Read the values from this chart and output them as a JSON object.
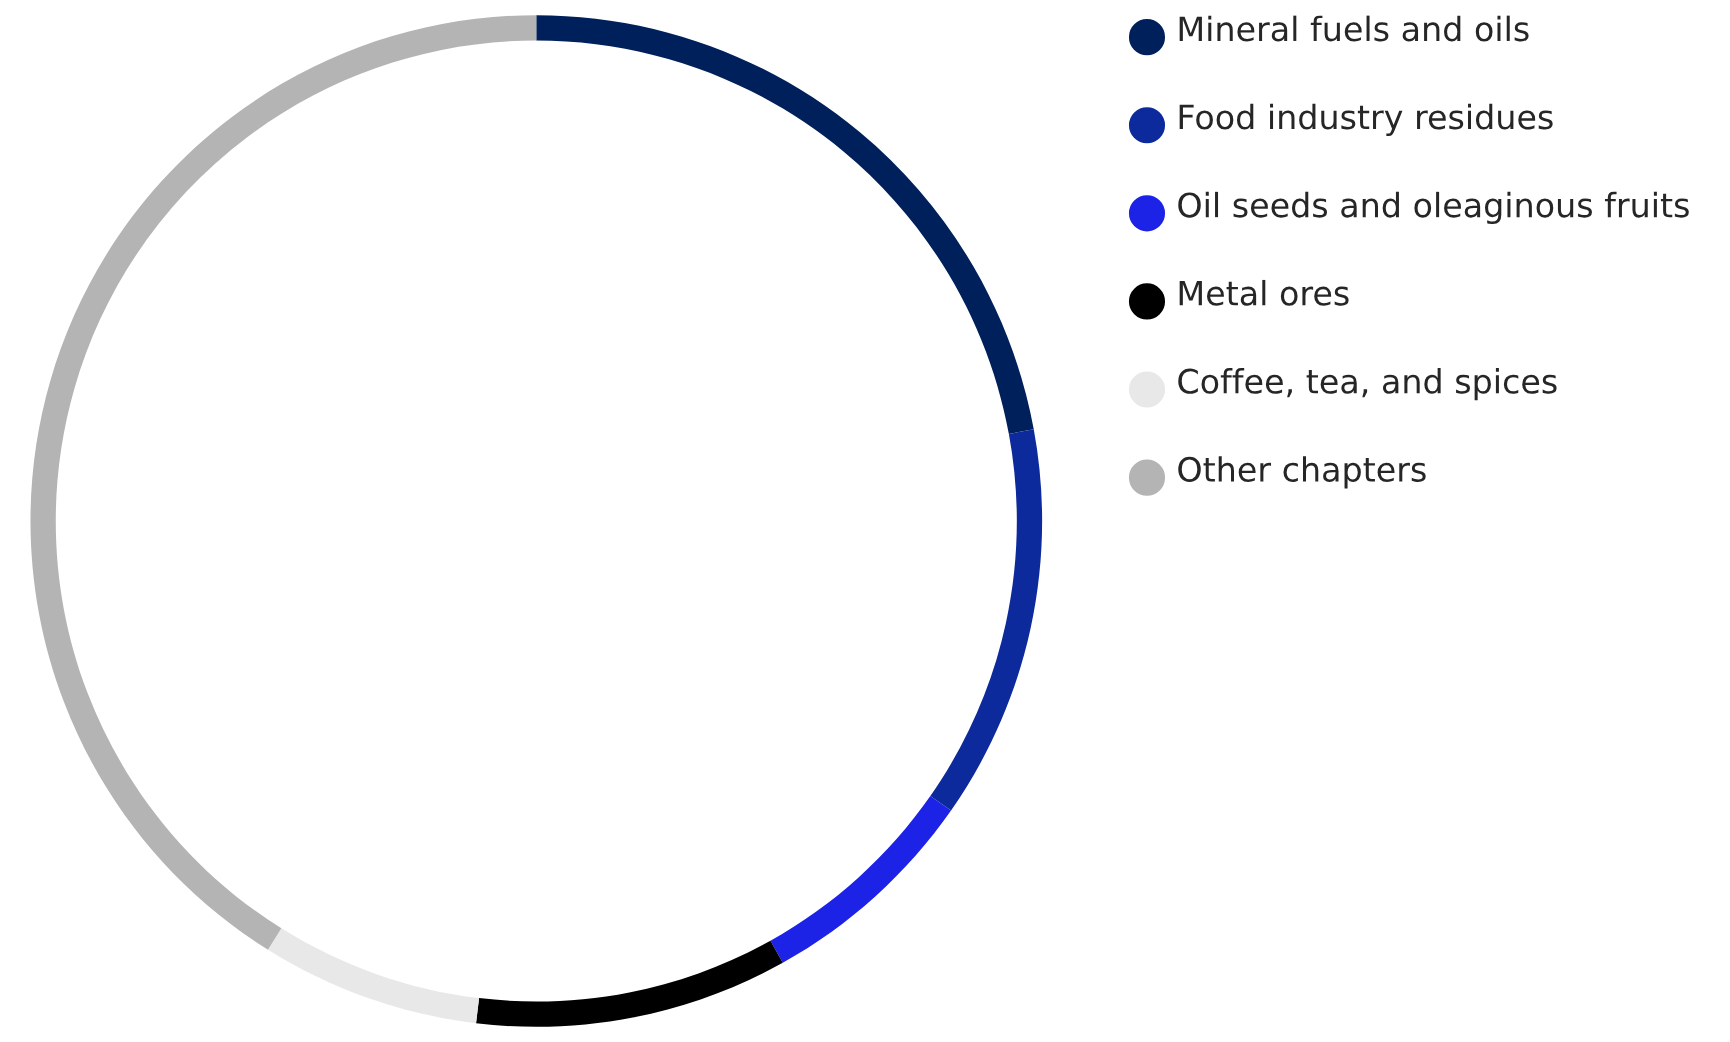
{
  "chart_data": {
    "type": "donut",
    "categories": [
      "Mineral fuels and oils",
      "Food industry residues",
      "Oil seeds and oleaginous fruits",
      "Metal ores",
      "Coffee, tea, and spices",
      "Other chapters"
    ],
    "values": [
      22.1,
      12.6,
      7.2,
      10.0,
      7.0,
      41.1
    ],
    "colors": [
      "#00205b",
      "#0c2a9c",
      "#1c22e6",
      "#000000",
      "#e8e8e8",
      "#b4b4b4"
    ],
    "legend": "right"
  }
}
